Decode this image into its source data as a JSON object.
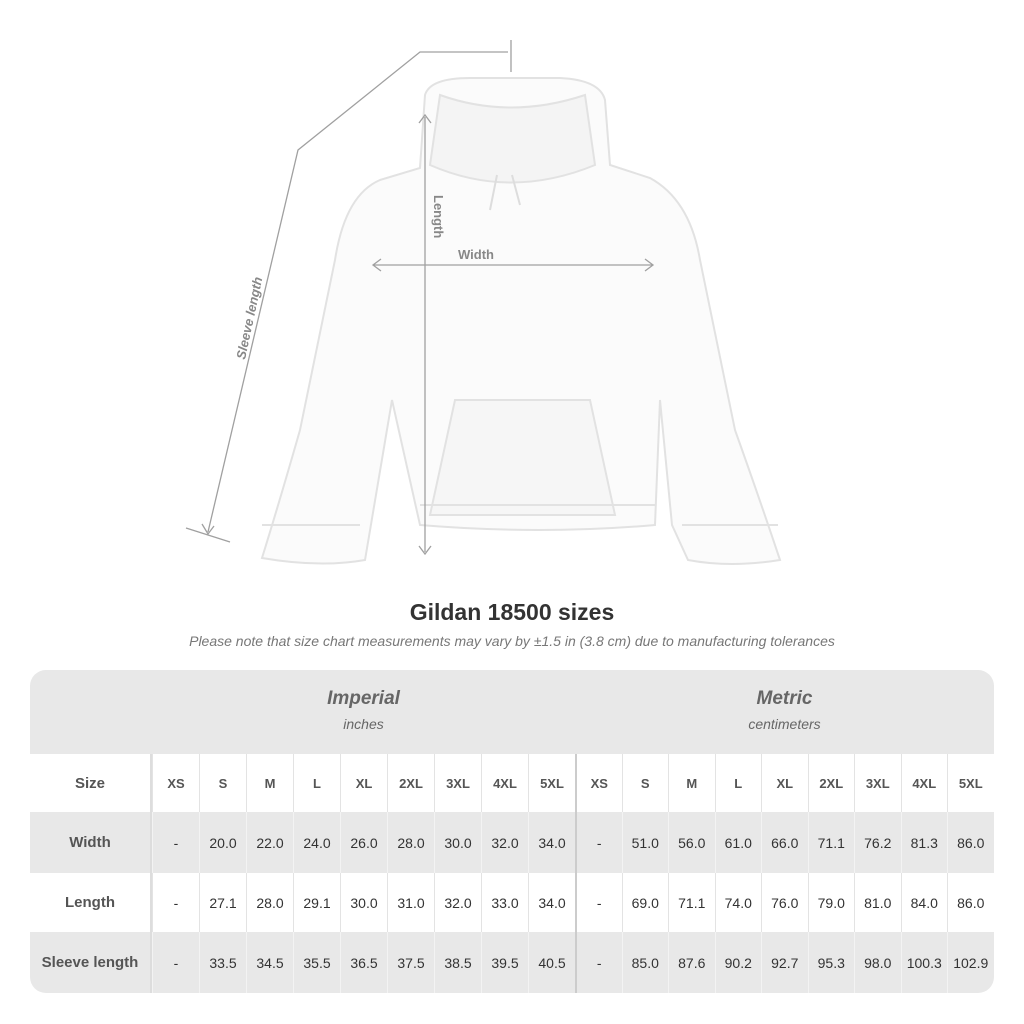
{
  "diagram": {
    "labels": {
      "sleeve": "Sleeve length",
      "length": "Length",
      "width": "Width"
    }
  },
  "title": "Gildan 18500 sizes",
  "subtitle": "Please note that size chart measurements may vary by ±1.5 in (3.8 cm) due to manufacturing tolerances",
  "table": {
    "imperial": {
      "name": "Imperial",
      "unit": "inches"
    },
    "metric": {
      "name": "Metric",
      "unit": "centimeters"
    },
    "size_label": "Size",
    "sizes": [
      "XS",
      "S",
      "M",
      "L",
      "XL",
      "2XL",
      "3XL",
      "4XL",
      "5XL"
    ],
    "rows": [
      {
        "label": "Width",
        "imperial": [
          "-",
          "20.0",
          "22.0",
          "24.0",
          "26.0",
          "28.0",
          "30.0",
          "32.0",
          "34.0"
        ],
        "metric": [
          "-",
          "51.0",
          "56.0",
          "61.0",
          "66.0",
          "71.1",
          "76.2",
          "81.3",
          "86.0"
        ]
      },
      {
        "label": "Length",
        "imperial": [
          "-",
          "27.1",
          "28.0",
          "29.1",
          "30.0",
          "31.0",
          "32.0",
          "33.0",
          "34.0"
        ],
        "metric": [
          "-",
          "69.0",
          "71.1",
          "74.0",
          "76.0",
          "79.0",
          "81.0",
          "84.0",
          "86.0"
        ]
      },
      {
        "label": "Sleeve length",
        "imperial": [
          "-",
          "33.5",
          "34.5",
          "35.5",
          "36.5",
          "37.5",
          "38.5",
          "39.5",
          "40.5"
        ],
        "metric": [
          "-",
          "85.0",
          "87.6",
          "90.2",
          "92.7",
          "95.3",
          "98.0",
          "100.3",
          "102.9"
        ]
      }
    ]
  },
  "colors": {
    "band": "#e8e8e8",
    "text": "#333333",
    "line": "#999999"
  }
}
